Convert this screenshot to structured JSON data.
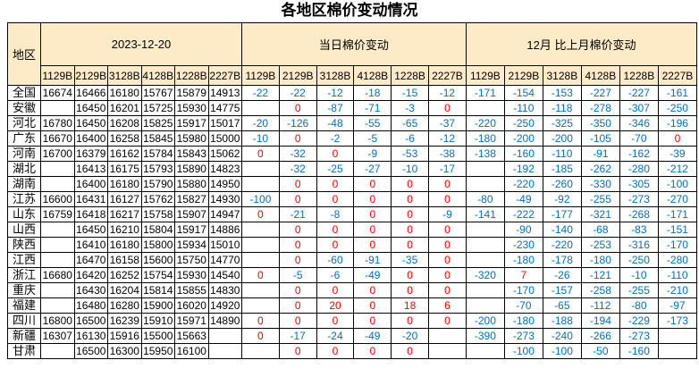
{
  "title": "各地区棉价变动情况",
  "colors": {
    "negative_value": "#0070C0",
    "non_negative_value": "#FF0000",
    "header_background": "#FCEBC6",
    "grid_border": "#000000"
  },
  "chart_data": {
    "type": "table",
    "title": "各地区棉价变动情况",
    "region_header": "地区",
    "column_codes": [
      "1129B",
      "2129B",
      "3128B",
      "4128B",
      "1228B",
      "2227B"
    ],
    "sections": [
      {
        "key": "prices",
        "label": "2023-12-20"
      },
      {
        "key": "daily",
        "label": "当日棉价变动"
      },
      {
        "key": "monthly",
        "label": "12月 比上月棉价变动"
      }
    ],
    "rows": [
      {
        "region": "全国",
        "prices": [
          "16674",
          "16466",
          "16180",
          "15767",
          "15879",
          "14913"
        ],
        "daily": [
          "-22",
          "-22",
          "-12",
          "-18",
          "-15",
          "-12"
        ],
        "monthly": [
          "-171",
          "-154",
          "-153",
          "-227",
          "-227",
          "-161"
        ]
      },
      {
        "region": "安徽",
        "prices": [
          "",
          "16450",
          "16201",
          "15725",
          "15930",
          "14775"
        ],
        "daily": [
          "",
          "0",
          "-87",
          "-71",
          "-3",
          "0"
        ],
        "monthly": [
          "",
          "-110",
          "-118",
          "-278",
          "-307",
          "-250"
        ]
      },
      {
        "region": "河北",
        "prices": [
          "16780",
          "16450",
          "16208",
          "15825",
          "15917",
          "15017"
        ],
        "daily": [
          "-20",
          "-126",
          "-48",
          "-55",
          "-65",
          "-37"
        ],
        "monthly": [
          "-220",
          "-250",
          "-325",
          "-350",
          "-346",
          "-196"
        ]
      },
      {
        "region": "广东",
        "prices": [
          "16670",
          "16400",
          "16258",
          "15845",
          "15980",
          "15000"
        ],
        "daily": [
          "-10",
          "0",
          "-2",
          "-5",
          "-6",
          "-12"
        ],
        "monthly": [
          "-180",
          "-200",
          "-200",
          "-105",
          "-70",
          "0"
        ]
      },
      {
        "region": "河南",
        "prices": [
          "16700",
          "16379",
          "16162",
          "15784",
          "15843",
          "15062"
        ],
        "daily": [
          "0",
          "-32",
          "0",
          "-9",
          "-53",
          "-38"
        ],
        "monthly": [
          "-138",
          "-160",
          "-110",
          "-91",
          "-162",
          "-39"
        ]
      },
      {
        "region": "湖北",
        "prices": [
          "",
          "16413",
          "16175",
          "15793",
          "15890",
          "14823"
        ],
        "daily": [
          "",
          "-32",
          "-25",
          "-27",
          "-10",
          "-17"
        ],
        "monthly": [
          "",
          "-192",
          "-185",
          "-262",
          "-280",
          "-212"
        ]
      },
      {
        "region": "湖南",
        "prices": [
          "",
          "16400",
          "16180",
          "15790",
          "15880",
          "14950"
        ],
        "daily": [
          "",
          "0",
          "0",
          "0",
          "0",
          "0"
        ],
        "monthly": [
          "",
          "-220",
          "-260",
          "-330",
          "-305",
          "-100"
        ]
      },
      {
        "region": "江苏",
        "prices": [
          "16600",
          "16431",
          "16127",
          "15762",
          "15827",
          "14930"
        ],
        "daily": [
          "-100",
          "0",
          "0",
          "0",
          "0",
          "0"
        ],
        "monthly": [
          "-80",
          "-49",
          "-92",
          "-255",
          "-273",
          "-270"
        ]
      },
      {
        "region": "山东",
        "prices": [
          "16759",
          "16418",
          "16217",
          "15758",
          "15907",
          "14947"
        ],
        "daily": [
          "0",
          "-21",
          "-8",
          "0",
          "0",
          "-9"
        ],
        "monthly": [
          "-141",
          "-222",
          "-177",
          "-321",
          "-268",
          "-171"
        ]
      },
      {
        "region": "山西",
        "prices": [
          "",
          "16450",
          "16210",
          "15804",
          "15917",
          "14886"
        ],
        "daily": [
          "",
          "0",
          "0",
          "0",
          "0",
          "0"
        ],
        "monthly": [
          "",
          "-90",
          "-140",
          "-68",
          "-83",
          "-151"
        ]
      },
      {
        "region": "陕西",
        "prices": [
          "",
          "16410",
          "16180",
          "15800",
          "15934",
          "15010"
        ],
        "daily": [
          "",
          "0",
          "0",
          "0",
          "0",
          "0"
        ],
        "monthly": [
          "",
          "-230",
          "-220",
          "-253",
          "-316",
          "-170"
        ]
      },
      {
        "region": "江西",
        "prices": [
          "",
          "16470",
          "16158",
          "15600",
          "15750",
          "14770"
        ],
        "daily": [
          "",
          "0",
          "-60",
          "-91",
          "-35",
          "0"
        ],
        "monthly": [
          "",
          "-180",
          "-178",
          "-180",
          "-250",
          "-280"
        ]
      },
      {
        "region": "浙江",
        "prices": [
          "16680",
          "16420",
          "16252",
          "15754",
          "15930",
          "14540"
        ],
        "daily": [
          "0",
          "-5",
          "-6",
          "-49",
          "0",
          "0"
        ],
        "monthly": [
          "-320",
          "7",
          "-26",
          "-121",
          "-10",
          "-110"
        ]
      },
      {
        "region": "重庆",
        "prices": [
          "",
          "16430",
          "16204",
          "15814",
          "15855",
          "14830"
        ],
        "daily": [
          "",
          "0",
          "0",
          "0",
          "0",
          "0"
        ],
        "monthly": [
          "",
          "-170",
          "-157",
          "-258",
          "-255",
          "-210"
        ]
      },
      {
        "region": "福建",
        "prices": [
          "",
          "16480",
          "16280",
          "15900",
          "16020",
          "14920"
        ],
        "daily": [
          "",
          "0",
          "20",
          "0",
          "18",
          "6"
        ],
        "monthly": [
          "",
          "-70",
          "-65",
          "-112",
          "-80",
          "-97"
        ]
      },
      {
        "region": "四川",
        "prices": [
          "16800",
          "16500",
          "16239",
          "15910",
          "15971",
          "14890"
        ],
        "daily": [
          "0",
          "0",
          "0",
          "0",
          "0",
          "0"
        ],
        "monthly": [
          "-200",
          "-180",
          "-188",
          "-194",
          "-229",
          "-173"
        ]
      },
      {
        "region": "新疆",
        "prices": [
          "16307",
          "16130",
          "15916",
          "15500",
          "15663",
          ""
        ],
        "daily": [
          "0",
          "-17",
          "-24",
          "-49",
          "-20",
          ""
        ],
        "monthly": [
          "-390",
          "-273",
          "-240",
          "-266",
          "-273",
          ""
        ]
      },
      {
        "region": "甘肃",
        "prices": [
          "",
          "16500",
          "16300",
          "15950",
          "16100",
          ""
        ],
        "daily": [
          "",
          "0",
          "0",
          "0",
          "0",
          ""
        ],
        "monthly": [
          "",
          "-100",
          "-100",
          "-50",
          "-160",
          ""
        ]
      }
    ]
  }
}
